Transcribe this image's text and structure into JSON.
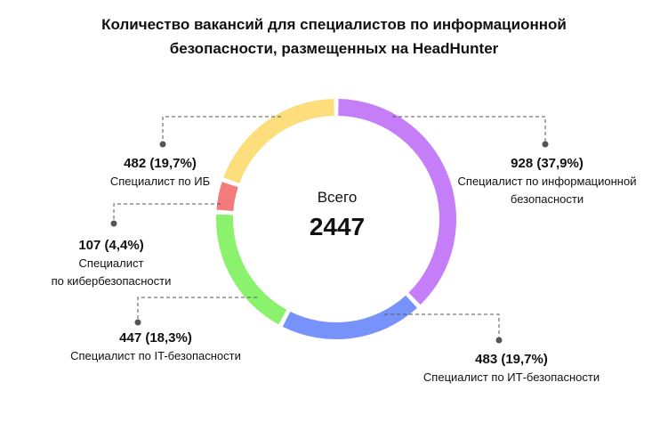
{
  "chart_data": {
    "type": "pie",
    "donut": true,
    "title_line1": "Количество вакансий для специалистов по информационной",
    "title_line2": "безопасности, размещенных на HeadHunter",
    "total_label": "Всего",
    "total_value": "2447",
    "slices": [
      {
        "name": "Специалист по информационной\nбезопасности",
        "value": 928,
        "percent": 37.9,
        "display": "928 (37,9%)",
        "color": "#C57EF8"
      },
      {
        "name": "Специалист по ИТ-безопасности",
        "value": 483,
        "percent": 19.7,
        "display": "483 (19,7%)",
        "color": "#7892FB"
      },
      {
        "name": "Специалист по IT-безопасности",
        "value": 447,
        "percent": 18.3,
        "display": "447 (18,3%)",
        "color": "#8AF26C"
      },
      {
        "name": "Специалист\nпо кибербезопасности",
        "value": 107,
        "percent": 4.4,
        "display": "107 (4,4%)",
        "color": "#F47B7B"
      },
      {
        "name": "Специалист по ИБ",
        "value": 482,
        "percent": 19.7,
        "display": "482 (19,7%)",
        "color": "#FCDF7C"
      }
    ]
  }
}
